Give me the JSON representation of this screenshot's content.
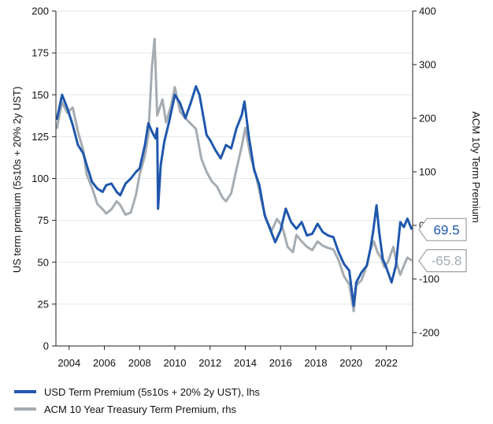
{
  "chart_data": {
    "type": "line",
    "title": "",
    "xlabel": "",
    "ylabel_left": "US term premium (5s10s + 20% 2y UST)",
    "ylabel_right": "ACM 10y Term Premium",
    "x_tick_labels": [
      "2004",
      "2006",
      "2008",
      "2010",
      "2012",
      "2014",
      "2016",
      "2018",
      "2020",
      "2022"
    ],
    "x_range": [
      2003.25,
      2023.5
    ],
    "left_axis": {
      "ylim": [
        0,
        200
      ],
      "ticks": [
        0,
        25,
        50,
        75,
        100,
        125,
        150,
        175,
        200
      ]
    },
    "right_axis": {
      "ylim": [
        -225,
        400
      ],
      "ticks": [
        -200,
        -100,
        0,
        100,
        200,
        300,
        400
      ]
    },
    "grid": "horizontal",
    "legend_placement": "bottom-left",
    "series": [
      {
        "name": "USD Term Premium (5s10s + 20% 2y UST), lhs",
        "axis": "left",
        "color": "#1f57ad",
        "last_value_label": "69.5",
        "points": [
          [
            2003.3,
            135
          ],
          [
            2003.6,
            150
          ],
          [
            2003.9,
            142
          ],
          [
            2004.2,
            132
          ],
          [
            2004.5,
            120
          ],
          [
            2004.8,
            115
          ],
          [
            2005.0,
            108
          ],
          [
            2005.3,
            98
          ],
          [
            2005.6,
            94
          ],
          [
            2005.9,
            92
          ],
          [
            2006.1,
            96
          ],
          [
            2006.4,
            97
          ],
          [
            2006.7,
            92
          ],
          [
            2006.9,
            90
          ],
          [
            2007.2,
            97
          ],
          [
            2007.5,
            100
          ],
          [
            2007.8,
            104
          ],
          [
            2008.0,
            106
          ],
          [
            2008.3,
            120
          ],
          [
            2008.5,
            133
          ],
          [
            2008.7,
            128
          ],
          [
            2008.9,
            124
          ],
          [
            2009.0,
            130
          ],
          [
            2009.05,
            82
          ],
          [
            2009.2,
            108
          ],
          [
            2009.4,
            122
          ],
          [
            2009.7,
            135
          ],
          [
            2010.0,
            150
          ],
          [
            2010.3,
            145
          ],
          [
            2010.6,
            136
          ],
          [
            2010.9,
            145
          ],
          [
            2011.2,
            155
          ],
          [
            2011.4,
            150
          ],
          [
            2011.6,
            138
          ],
          [
            2011.8,
            126
          ],
          [
            2012.0,
            123
          ],
          [
            2012.3,
            117
          ],
          [
            2012.6,
            112
          ],
          [
            2012.9,
            120
          ],
          [
            2013.2,
            118
          ],
          [
            2013.5,
            130
          ],
          [
            2013.8,
            138
          ],
          [
            2013.95,
            146
          ],
          [
            2014.2,
            125
          ],
          [
            2014.5,
            105
          ],
          [
            2014.8,
            96
          ],
          [
            2015.1,
            78
          ],
          [
            2015.4,
            70
          ],
          [
            2015.7,
            62
          ],
          [
            2016.0,
            69
          ],
          [
            2016.3,
            82
          ],
          [
            2016.6,
            74
          ],
          [
            2016.9,
            70
          ],
          [
            2017.2,
            74
          ],
          [
            2017.5,
            66
          ],
          [
            2017.8,
            67
          ],
          [
            2018.1,
            73
          ],
          [
            2018.4,
            68
          ],
          [
            2018.7,
            66
          ],
          [
            2019.0,
            65
          ],
          [
            2019.3,
            56
          ],
          [
            2019.6,
            49
          ],
          [
            2019.9,
            45
          ],
          [
            2020.15,
            24
          ],
          [
            2020.3,
            38
          ],
          [
            2020.6,
            44
          ],
          [
            2020.9,
            48
          ],
          [
            2021.1,
            58
          ],
          [
            2021.25,
            68
          ],
          [
            2021.45,
            84
          ],
          [
            2021.6,
            68
          ],
          [
            2021.8,
            52
          ],
          [
            2022.0,
            47
          ],
          [
            2022.3,
            38
          ],
          [
            2022.55,
            48
          ],
          [
            2022.8,
            74
          ],
          [
            2023.0,
            71
          ],
          [
            2023.2,
            76
          ],
          [
            2023.45,
            69.5
          ]
        ]
      },
      {
        "name": "ACM 10 Year Treasury Term Premium, rhs",
        "axis": "right",
        "color": "#a5acb2",
        "last_value_label": "-65.8",
        "points": [
          [
            2003.3,
            180
          ],
          [
            2003.6,
            230
          ],
          [
            2003.9,
            210
          ],
          [
            2004.2,
            220
          ],
          [
            2004.5,
            175
          ],
          [
            2004.8,
            140
          ],
          [
            2005.0,
            95
          ],
          [
            2005.3,
            70
          ],
          [
            2005.6,
            40
          ],
          [
            2005.9,
            30
          ],
          [
            2006.1,
            22
          ],
          [
            2006.4,
            30
          ],
          [
            2006.7,
            45
          ],
          [
            2006.9,
            38
          ],
          [
            2007.2,
            20
          ],
          [
            2007.5,
            24
          ],
          [
            2007.8,
            58
          ],
          [
            2008.0,
            95
          ],
          [
            2008.3,
            130
          ],
          [
            2008.5,
            170
          ],
          [
            2008.7,
            295
          ],
          [
            2008.85,
            348
          ],
          [
            2009.0,
            205
          ],
          [
            2009.3,
            235
          ],
          [
            2009.5,
            192
          ],
          [
            2009.8,
            225
          ],
          [
            2010.0,
            258
          ],
          [
            2010.3,
            212
          ],
          [
            2010.6,
            200
          ],
          [
            2010.9,
            190
          ],
          [
            2011.2,
            180
          ],
          [
            2011.5,
            125
          ],
          [
            2011.8,
            100
          ],
          [
            2012.1,
            82
          ],
          [
            2012.4,
            72
          ],
          [
            2012.7,
            52
          ],
          [
            2012.9,
            45
          ],
          [
            2013.2,
            60
          ],
          [
            2013.5,
            105
          ],
          [
            2013.8,
            148
          ],
          [
            2014.0,
            182
          ],
          [
            2014.3,
            128
          ],
          [
            2014.6,
            95
          ],
          [
            2014.9,
            48
          ],
          [
            2015.2,
            10
          ],
          [
            2015.5,
            -10
          ],
          [
            2015.8,
            12
          ],
          [
            2016.1,
            -2
          ],
          [
            2016.4,
            -40
          ],
          [
            2016.7,
            -50
          ],
          [
            2016.9,
            -18
          ],
          [
            2017.2,
            -30
          ],
          [
            2017.5,
            -40
          ],
          [
            2017.8,
            -46
          ],
          [
            2018.1,
            -30
          ],
          [
            2018.4,
            -38
          ],
          [
            2018.7,
            -42
          ],
          [
            2019.0,
            -45
          ],
          [
            2019.3,
            -65
          ],
          [
            2019.6,
            -95
          ],
          [
            2019.9,
            -110
          ],
          [
            2020.15,
            -160
          ],
          [
            2020.3,
            -112
          ],
          [
            2020.6,
            -102
          ],
          [
            2020.9,
            -75
          ],
          [
            2021.1,
            -45
          ],
          [
            2021.3,
            -30
          ],
          [
            2021.5,
            -50
          ],
          [
            2021.7,
            -60
          ],
          [
            2021.9,
            -78
          ],
          [
            2022.1,
            -68
          ],
          [
            2022.4,
            -40
          ],
          [
            2022.6,
            -72
          ],
          [
            2022.8,
            -92
          ],
          [
            2023.0,
            -75
          ],
          [
            2023.2,
            -60
          ],
          [
            2023.45,
            -65.8
          ]
        ]
      }
    ]
  }
}
